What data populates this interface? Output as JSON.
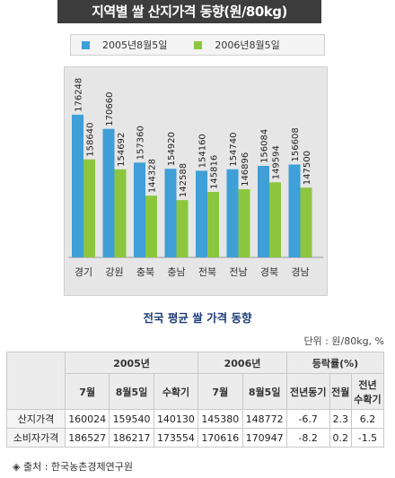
{
  "chart_data": {
    "type": "bar",
    "title": "지역별 쌀 산지가격 동향(원/80kg)",
    "categories": [
      "경기",
      "강원",
      "충북",
      "충남",
      "전북",
      "전남",
      "경북",
      "경남"
    ],
    "series": [
      {
        "name": "2005년8월5일",
        "color": "#3f9fd6",
        "values": [
          176248,
          170660,
          157360,
          154920,
          154160,
          154740,
          156084,
          156608
        ]
      },
      {
        "name": "2006년8월5일",
        "color": "#8cc63f",
        "values": [
          158640,
          154692,
          144328,
          142588,
          145816,
          146896,
          149594,
          147500
        ]
      }
    ],
    "ylim": [
      120000,
      190000
    ],
    "grid": false,
    "legend": "top"
  },
  "table": {
    "subtitle": "전국 평균 쌀 가격 동향",
    "unit": "단위 : 원/80kg, %",
    "groups": {
      "y2005": "2005년",
      "y2006": "2006년",
      "rate": "등락률(%)"
    },
    "cols": {
      "jul05": "7월",
      "aug05": "8월5일",
      "harvest": "수확기",
      "jul06": "7월",
      "aug06": "8월5일",
      "yoy": "전년동기",
      "mom": "전월",
      "prev_harvest_1": "전년",
      "prev_harvest_2": "수확기"
    },
    "rows": [
      {
        "label": "산지가격",
        "jul05": "160024",
        "aug05": "159540",
        "harvest": "140130",
        "jul06": "145380",
        "aug06": "148772",
        "yoy": "-6.7",
        "mom": "2.3",
        "prev_harvest": "6.2"
      },
      {
        "label": "소비자가격",
        "jul05": "186527",
        "aug05": "186217",
        "harvest": "173554",
        "jul06": "170616",
        "aug06": "170947",
        "yoy": "-8.2",
        "mom": "0.2",
        "prev_harvest": "-1.5"
      }
    ]
  },
  "source": "◈ 출처 : 한국농촌경제연구원"
}
